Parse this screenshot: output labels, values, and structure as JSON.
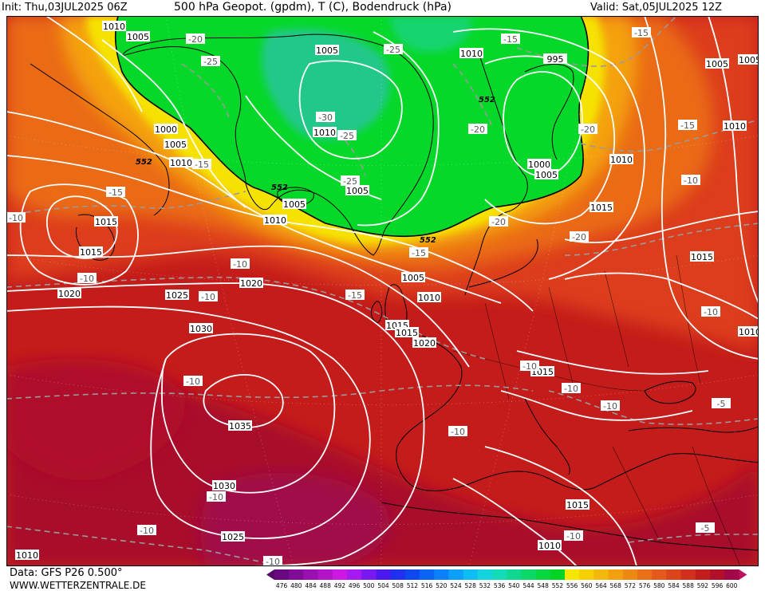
{
  "header": {
    "init": "Init: Thu,03JUL2025 06Z",
    "title": "500 hPa Geopot. (gpdm), T (C), Bodendruck (hPa)",
    "valid": "Valid: Sat,05JUL2025 12Z"
  },
  "footer": {
    "data_source": "Data: GFS P26 0.500°",
    "website": "WWW.WETTERZENTRALE.DE"
  },
  "colors": {
    "bg_red": "#c21a1a",
    "deep_red": "#a80c2a",
    "magenta": "#a00848",
    "orange_red": "#dc3c1c",
    "orange": "#ee7a14",
    "yellow_orange": "#f4a80c",
    "yellow": "#f6e600",
    "light_green": "#10e040",
    "green": "#04d828",
    "teal": "#20c890",
    "isobar": "#ffffff",
    "temp_line": "#9a9a9a",
    "coast": "#000000"
  },
  "legend": {
    "ticks": [
      "476",
      "480",
      "484",
      "488",
      "492",
      "496",
      "500",
      "504",
      "508",
      "512",
      "516",
      "520",
      "524",
      "528",
      "532",
      "536",
      "540",
      "544",
      "548",
      "552",
      "556",
      "560",
      "564",
      "568",
      "572",
      "576",
      "580",
      "584",
      "588",
      "592",
      "596",
      "600"
    ],
    "colors": [
      "#6a0880",
      "#800c98",
      "#9a10b0",
      "#b414c8",
      "#cc18e0",
      "#a818f0",
      "#7a18f0",
      "#4c18f0",
      "#2030f0",
      "#1048f0",
      "#0c64f4",
      "#0c80f8",
      "#0ca0f8",
      "#10bcf4",
      "#14d4e0",
      "#14dcb8",
      "#10d890",
      "#0cd868",
      "#08d840",
      "#04d424",
      "#f6e600",
      "#f6d000",
      "#f4b80c",
      "#f2a010",
      "#ee8814",
      "#ea7018",
      "#e45a1c",
      "#dc441c",
      "#d0301c",
      "#c21e1c",
      "#b0102a",
      "#a00848"
    ]
  },
  "isobar_labels": [
    "1010",
    "1005",
    "1005",
    "1000",
    "1005",
    "1010",
    "1015",
    "1020",
    "1025",
    "1030",
    "1035",
    "1030",
    "1025",
    "1020",
    "1015",
    "1010",
    "1005",
    "1010",
    "1005",
    "1010",
    "1005",
    "1015",
    "1020",
    "995",
    "1000",
    "1005",
    "1010",
    "1015",
    "1015",
    "1010",
    "1005",
    "1015",
    "1010",
    "1015",
    "1010",
    "1010",
    "1005",
    "1015",
    "1010"
  ],
  "temp_labels": [
    "-20",
    "-25",
    "-25",
    "-15",
    "-15",
    "-10",
    "-10",
    "-10",
    "-10",
    "-10",
    "-10",
    "-10",
    "-10",
    "-25",
    "-30",
    "-25",
    "-20",
    "-15",
    "-15",
    "-15",
    "-20",
    "-20",
    "-20",
    "-15",
    "-15",
    "-10",
    "-10",
    "-10",
    "-10",
    "-10",
    "-10",
    "-5",
    "-5",
    "-10"
  ],
  "geopot_labels": [
    "552",
    "552",
    "552",
    "552"
  ]
}
